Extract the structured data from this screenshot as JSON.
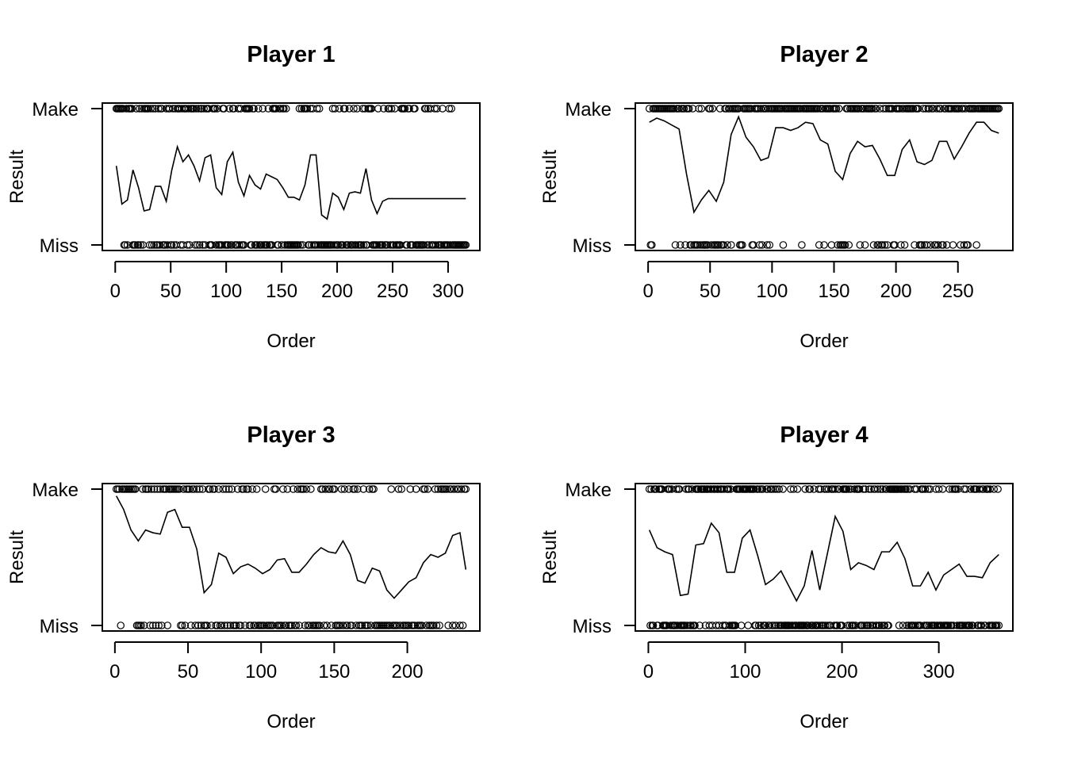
{
  "figure": {
    "ylabel": "Result",
    "xlabel": "Order",
    "ycat_top": "Make",
    "ycat_bottom": "Miss"
  },
  "chart_data": [
    {
      "type": "scatter",
      "title": "Player 1",
      "xlabel": "Order",
      "ylabel": "Result",
      "y_categories": [
        "Miss",
        "Make"
      ],
      "xlim": [
        0,
        316
      ],
      "xticks": [
        0,
        50,
        100,
        150,
        200,
        250,
        300
      ],
      "series": [
        {
          "type": "points",
          "values_note": "binary shot outcomes (0 = Miss, 1 = Make) at each order index 1..316"
        },
        {
          "type": "line",
          "x": [
            1,
            6,
            11,
            16,
            21,
            26,
            31,
            36,
            41,
            46,
            51,
            56,
            61,
            66,
            71,
            76,
            81,
            86,
            91,
            96,
            101,
            106,
            111,
            116,
            121,
            126,
            131,
            136,
            141,
            146,
            151,
            156,
            161,
            166,
            171,
            176,
            181,
            186,
            191,
            196,
            201,
            206,
            211,
            216,
            221,
            226,
            231,
            236,
            241,
            246,
            251,
            256,
            261,
            266,
            271,
            276,
            281,
            286,
            291,
            296,
            301,
            306,
            311,
            316
          ],
          "y": [
            0.58,
            0.3,
            0.33,
            0.55,
            0.42,
            0.25,
            0.26,
            0.43,
            0.43,
            0.32,
            0.55,
            0.72,
            0.61,
            0.66,
            0.58,
            0.47,
            0.64,
            0.66,
            0.42,
            0.37,
            0.61,
            0.68,
            0.46,
            0.36,
            0.51,
            0.44,
            0.41,
            0.52,
            0.5,
            0.48,
            0.42,
            0.35,
            0.35,
            0.33,
            0.44,
            0.66,
            0.66,
            0.22,
            0.19,
            0.38,
            0.35,
            0.26,
            0.38,
            0.39,
            0.38,
            0.56,
            0.33,
            0.23,
            0.32,
            0.34,
            0.34,
            0.34,
            0.34,
            0.34,
            0.34,
            0.34,
            0.34,
            0.34,
            0.34,
            0.34,
            0.34,
            0.34,
            0.34,
            0.34
          ]
        }
      ]
    },
    {
      "type": "scatter",
      "title": "Player 2",
      "xlabel": "Order",
      "ylabel": "Result",
      "y_categories": [
        "Miss",
        "Make"
      ],
      "xlim": [
        0,
        283
      ],
      "xticks": [
        0,
        50,
        100,
        150,
        200,
        250
      ],
      "series": [
        {
          "type": "points",
          "values_note": "binary shot outcomes (0 = Miss, 1 = Make) at each order index 1..283"
        },
        {
          "type": "line",
          "x": [
            1,
            7,
            13,
            19,
            25,
            31,
            37,
            43,
            49,
            55,
            61,
            67,
            73,
            79,
            85,
            91,
            97,
            103,
            109,
            115,
            121,
            127,
            133,
            139,
            145,
            151,
            157,
            163,
            169,
            175,
            181,
            187,
            193,
            199,
            205,
            211,
            217,
            223,
            229,
            235,
            241,
            247,
            253,
            259,
            265,
            271,
            277,
            283
          ],
          "y": [
            0.9,
            0.93,
            0.91,
            0.88,
            0.85,
            0.52,
            0.24,
            0.33,
            0.4,
            0.32,
            0.46,
            0.81,
            0.94,
            0.79,
            0.72,
            0.62,
            0.64,
            0.86,
            0.86,
            0.84,
            0.86,
            0.9,
            0.89,
            0.77,
            0.74,
            0.54,
            0.48,
            0.67,
            0.76,
            0.72,
            0.73,
            0.63,
            0.51,
            0.51,
            0.7,
            0.77,
            0.61,
            0.59,
            0.62,
            0.76,
            0.76,
            0.63,
            0.72,
            0.82,
            0.9,
            0.9,
            0.84,
            0.82
          ]
        }
      ]
    },
    {
      "type": "scatter",
      "title": "Player 3",
      "xlabel": "Order",
      "ylabel": "Result",
      "y_categories": [
        "Miss",
        "Make"
      ],
      "xlim": [
        0,
        240
      ],
      "xticks": [
        0,
        50,
        100,
        150,
        200
      ],
      "series": [
        {
          "type": "points",
          "values_note": "binary shot outcomes (0 = Miss, 1 = Make) at each order index 1..240"
        },
        {
          "type": "line",
          "x": [
            1,
            6,
            11,
            16,
            21,
            26,
            31,
            36,
            41,
            46,
            51,
            56,
            61,
            66,
            71,
            76,
            81,
            86,
            91,
            96,
            101,
            106,
            111,
            116,
            121,
            126,
            131,
            136,
            141,
            146,
            151,
            156,
            161,
            166,
            171,
            176,
            181,
            186,
            191,
            196,
            201,
            206,
            211,
            216,
            221,
            226,
            231,
            236,
            240
          ],
          "y": [
            0.95,
            0.85,
            0.7,
            0.62,
            0.7,
            0.68,
            0.67,
            0.83,
            0.85,
            0.72,
            0.72,
            0.56,
            0.24,
            0.3,
            0.53,
            0.5,
            0.38,
            0.43,
            0.45,
            0.42,
            0.38,
            0.41,
            0.48,
            0.49,
            0.39,
            0.39,
            0.45,
            0.52,
            0.57,
            0.54,
            0.53,
            0.62,
            0.52,
            0.33,
            0.31,
            0.42,
            0.4,
            0.26,
            0.2,
            0.26,
            0.32,
            0.35,
            0.46,
            0.52,
            0.5,
            0.53,
            0.66,
            0.68,
            0.41
          ]
        }
      ]
    },
    {
      "type": "scatter",
      "title": "Player 4",
      "xlabel": "Order",
      "ylabel": "Result",
      "y_categories": [
        "Miss",
        "Make"
      ],
      "xlim": [
        0,
        362
      ],
      "xticks": [
        0,
        100,
        200,
        300
      ],
      "series": [
        {
          "type": "points",
          "values_note": "binary shot outcomes (0 = Miss, 1 = Make) at each order index 1..362"
        },
        {
          "type": "line",
          "x": [
            1,
            9,
            17,
            25,
            33,
            41,
            49,
            57,
            65,
            73,
            81,
            89,
            97,
            105,
            113,
            121,
            129,
            137,
            145,
            153,
            161,
            169,
            177,
            185,
            193,
            201,
            209,
            217,
            225,
            233,
            241,
            249,
            257,
            265,
            273,
            281,
            289,
            297,
            305,
            313,
            321,
            329,
            337,
            345,
            353,
            362
          ],
          "y": [
            0.7,
            0.57,
            0.54,
            0.52,
            0.22,
            0.23,
            0.59,
            0.6,
            0.75,
            0.68,
            0.39,
            0.39,
            0.64,
            0.7,
            0.51,
            0.3,
            0.34,
            0.4,
            0.29,
            0.18,
            0.29,
            0.55,
            0.26,
            0.53,
            0.8,
            0.69,
            0.41,
            0.46,
            0.44,
            0.41,
            0.54,
            0.54,
            0.61,
            0.49,
            0.29,
            0.29,
            0.39,
            0.26,
            0.37,
            0.41,
            0.45,
            0.36,
            0.36,
            0.35,
            0.46,
            0.52
          ]
        }
      ]
    }
  ]
}
